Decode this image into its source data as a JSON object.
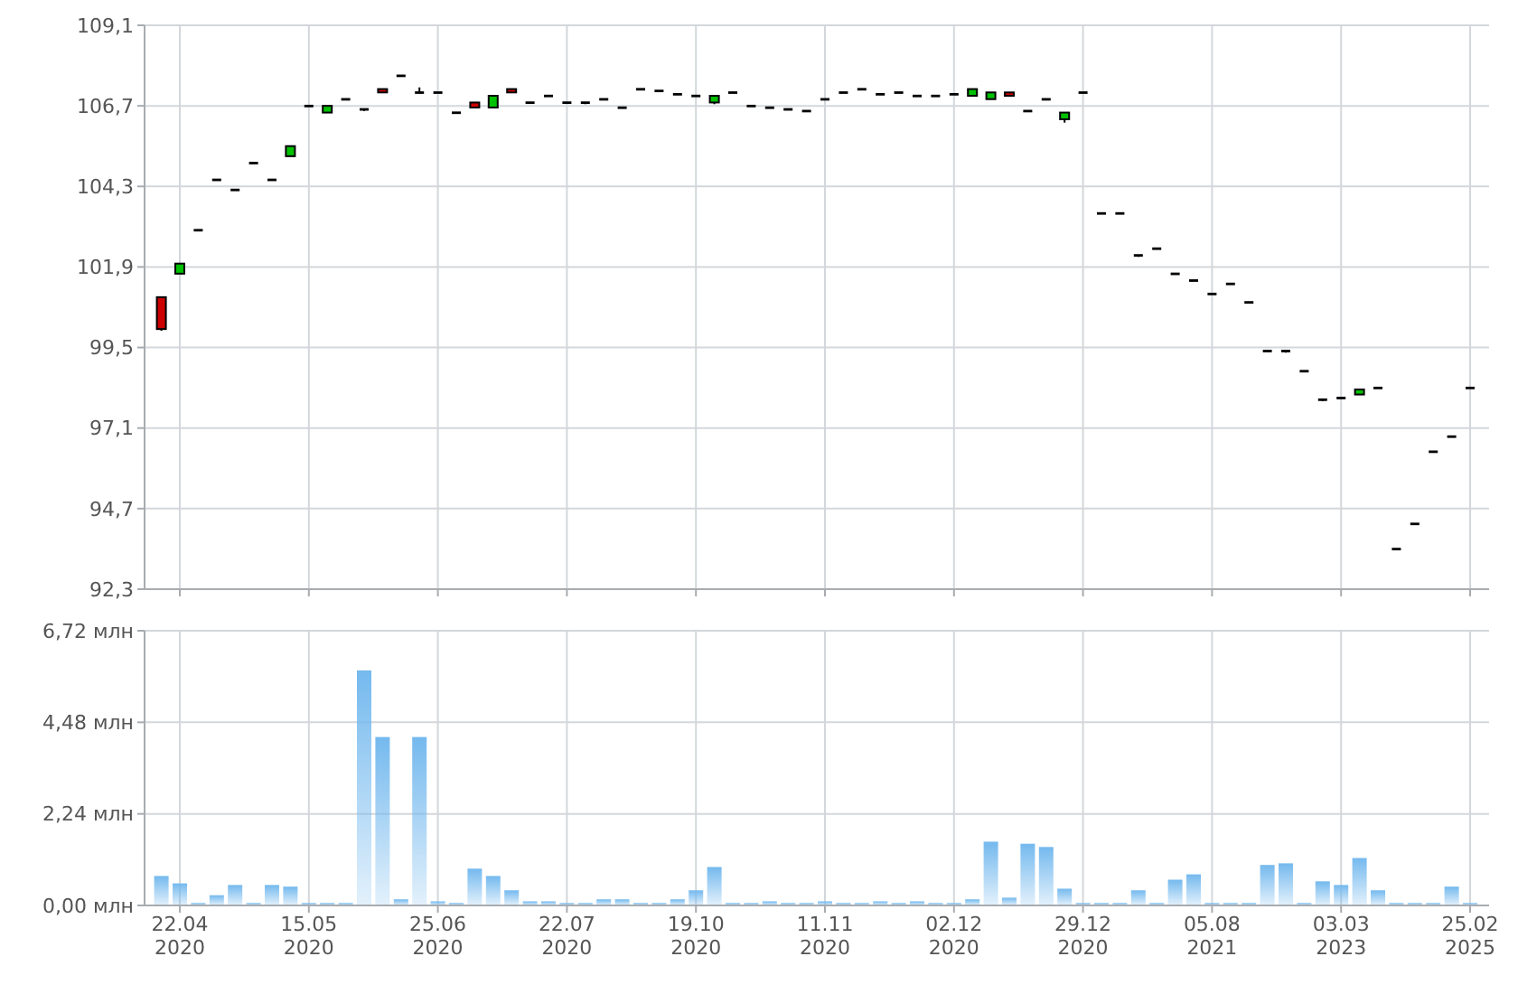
{
  "chart_data": [
    {
      "type": "candlestick",
      "categories": [
        null,
        null,
        null,
        null,
        null,
        null,
        null,
        null,
        null,
        null,
        null,
        null,
        null,
        null,
        null,
        null,
        null,
        null,
        null,
        null,
        null,
        null,
        null,
        null,
        null,
        null,
        null,
        null,
        null,
        null,
        null,
        null,
        null,
        null,
        null,
        null,
        null,
        null,
        null,
        null,
        null,
        null,
        null,
        null,
        null,
        null,
        null,
        null,
        null,
        null,
        null,
        null,
        null,
        null,
        null,
        null,
        null,
        null,
        null,
        null,
        null,
        null,
        null,
        null,
        null,
        null,
        null,
        null,
        null,
        null,
        null,
        null
      ],
      "ohlc": [
        [
          101.0,
          101.0,
          100.0,
          100.05
        ],
        [
          101.7,
          102.0,
          101.7,
          102.0
        ],
        [
          103.0,
          103.0,
          103.0,
          103.0
        ],
        [
          104.5,
          104.5,
          104.5,
          104.5
        ],
        [
          104.2,
          104.2,
          104.2,
          104.2
        ],
        [
          105.0,
          105.0,
          105.0,
          105.0
        ],
        [
          104.5,
          104.5,
          104.5,
          104.5
        ],
        [
          105.2,
          105.5,
          105.2,
          105.5
        ],
        [
          106.7,
          106.7,
          106.7,
          106.7
        ],
        [
          106.5,
          106.7,
          106.5,
          106.7
        ],
        [
          106.9,
          106.9,
          106.9,
          106.9
        ],
        [
          106.6,
          106.6,
          106.55,
          106.6
        ],
        [
          107.2,
          107.2,
          107.1,
          107.1
        ],
        [
          107.6,
          107.6,
          107.6,
          107.6
        ],
        [
          107.1,
          107.25,
          107.1,
          107.1
        ],
        [
          107.1,
          107.1,
          107.1,
          107.1
        ],
        [
          106.5,
          106.5,
          106.5,
          106.5
        ],
        [
          106.8,
          106.8,
          106.65,
          106.65
        ],
        [
          106.65,
          107.0,
          106.65,
          107.0
        ],
        [
          107.2,
          107.2,
          107.1,
          107.1
        ],
        [
          106.8,
          106.8,
          106.8,
          106.8
        ],
        [
          107.0,
          107.0,
          107.0,
          107.0
        ],
        [
          106.8,
          106.8,
          106.8,
          106.8
        ],
        [
          106.8,
          106.8,
          106.75,
          106.8
        ],
        [
          106.9,
          106.9,
          106.9,
          106.9
        ],
        [
          106.65,
          106.65,
          106.65,
          106.65
        ],
        [
          107.2,
          107.2,
          107.2,
          107.2
        ],
        [
          107.15,
          107.15,
          107.15,
          107.15
        ],
        [
          107.05,
          107.05,
          107.05,
          107.05
        ],
        [
          107.0,
          107.0,
          107.0,
          107.0
        ],
        [
          106.8,
          107.0,
          106.75,
          107.0
        ],
        [
          107.1,
          107.1,
          107.1,
          107.1
        ],
        [
          106.7,
          106.7,
          106.7,
          106.7
        ],
        [
          106.65,
          106.65,
          106.65,
          106.65
        ],
        [
          106.6,
          106.6,
          106.6,
          106.6
        ],
        [
          106.55,
          106.55,
          106.55,
          106.55
        ],
        [
          106.9,
          106.9,
          106.9,
          106.9
        ],
        [
          107.1,
          107.1,
          107.1,
          107.1
        ],
        [
          107.2,
          107.2,
          107.2,
          107.2
        ],
        [
          107.05,
          107.05,
          107.05,
          107.05
        ],
        [
          107.1,
          107.1,
          107.1,
          107.1
        ],
        [
          107.0,
          107.0,
          107.0,
          107.0
        ],
        [
          107.0,
          107.0,
          107.0,
          107.0
        ],
        [
          107.05,
          107.05,
          107.05,
          107.05
        ],
        [
          107.0,
          107.2,
          107.0,
          107.2
        ],
        [
          106.9,
          107.1,
          106.9,
          107.1
        ],
        [
          107.1,
          107.1,
          107.0,
          107.0
        ],
        [
          106.55,
          106.55,
          106.55,
          106.55
        ],
        [
          106.9,
          106.9,
          106.9,
          106.9
        ],
        [
          106.3,
          106.5,
          106.2,
          106.5
        ],
        [
          107.1,
          107.1,
          107.1,
          107.1
        ],
        [
          103.5,
          103.5,
          103.5,
          103.5
        ],
        [
          103.5,
          103.5,
          103.5,
          103.5
        ],
        [
          102.25,
          102.25,
          102.2,
          102.25
        ],
        [
          102.45,
          102.45,
          102.45,
          102.45
        ],
        [
          101.7,
          101.7,
          101.7,
          101.7
        ],
        [
          101.5,
          101.5,
          101.5,
          101.5
        ],
        [
          101.1,
          101.1,
          101.1,
          101.1
        ],
        [
          101.4,
          101.4,
          101.4,
          101.4
        ],
        [
          100.85,
          100.85,
          100.85,
          100.85
        ],
        [
          99.4,
          99.4,
          99.4,
          99.4
        ],
        [
          99.4,
          99.4,
          99.35,
          99.4
        ],
        [
          98.8,
          98.8,
          98.8,
          98.8
        ],
        [
          97.95,
          97.95,
          97.9,
          97.95
        ],
        [
          98.0,
          98.0,
          98.0,
          98.0
        ],
        [
          98.1,
          98.25,
          98.1,
          98.25
        ],
        [
          98.3,
          98.3,
          98.3,
          98.3
        ],
        [
          93.5,
          93.5,
          93.5,
          93.5
        ],
        [
          94.25,
          94.25,
          94.25,
          94.25
        ],
        [
          96.4,
          96.4,
          96.4,
          96.4
        ],
        [
          96.85,
          96.85,
          96.85,
          96.85
        ],
        [
          98.3,
          98.3,
          98.3,
          98.3
        ]
      ],
      "ylim": [
        92.3,
        109.1
      ],
      "yticks": [
        {
          "value": 92.3,
          "label": "92,3"
        },
        {
          "value": 94.7,
          "label": "94,7"
        },
        {
          "value": 97.1,
          "label": "97,1"
        },
        {
          "value": 99.5,
          "label": "99,5"
        },
        {
          "value": 101.9,
          "label": "101,9"
        },
        {
          "value": 104.3,
          "label": "104,3"
        },
        {
          "value": 106.7,
          "label": "106,7"
        },
        {
          "value": 109.1,
          "label": "109,1"
        }
      ],
      "grid": true,
      "tick_labels": "y"
    },
    {
      "type": "bar",
      "categories": [
        null,
        "22.04\n2020",
        null,
        null,
        null,
        null,
        null,
        null,
        "15.05\n2020",
        null,
        null,
        null,
        null,
        null,
        null,
        "25.06\n2020",
        null,
        null,
        null,
        null,
        null,
        null,
        "22.07\n2020",
        null,
        null,
        null,
        null,
        null,
        null,
        "19.10\n2020",
        null,
        null,
        null,
        null,
        null,
        null,
        "11.11\n2020",
        null,
        null,
        null,
        null,
        null,
        null,
        "02.12\n2020",
        null,
        null,
        null,
        null,
        null,
        null,
        "29.12\n2020",
        null,
        null,
        null,
        null,
        null,
        null,
        "05.08\n2021",
        null,
        null,
        null,
        null,
        null,
        null,
        "03.03\n2023",
        null,
        null,
        null,
        null,
        null,
        null,
        "25.02\n2025"
      ],
      "values": [
        0.72,
        0.54,
        0.06,
        0.25,
        0.5,
        0.06,
        0.5,
        0.46,
        0.06,
        0.06,
        0.06,
        5.75,
        4.12,
        0.15,
        4.12,
        0.1,
        0.06,
        0.9,
        0.72,
        0.37,
        0.1,
        0.1,
        0.06,
        0.06,
        0.15,
        0.15,
        0.06,
        0.06,
        0.15,
        0.37,
        0.94,
        0.06,
        0.06,
        0.1,
        0.06,
        0.06,
        0.1,
        0.06,
        0.06,
        0.1,
        0.06,
        0.1,
        0.06,
        0.06,
        0.15,
        1.56,
        0.19,
        1.51,
        1.43,
        0.41,
        0.06,
        0.06,
        0.06,
        0.37,
        0.06,
        0.63,
        0.76,
        0.06,
        0.06,
        0.06,
        0.99,
        1.03,
        0.06,
        0.59,
        0.5,
        1.16,
        0.37,
        0.06,
        0.06,
        0.06,
        0.46,
        0.06
      ],
      "color": "#74b9ee",
      "ylim": [
        0,
        6.72
      ],
      "yticks": [
        {
          "value": 0,
          "label": "0,00 млн"
        },
        {
          "value": 2.24,
          "label": "2,24 млн"
        },
        {
          "value": 4.48,
          "label": "4,48 млн"
        },
        {
          "value": 6.72,
          "label": "6,72 млн"
        }
      ],
      "grid": true
    }
  ]
}
